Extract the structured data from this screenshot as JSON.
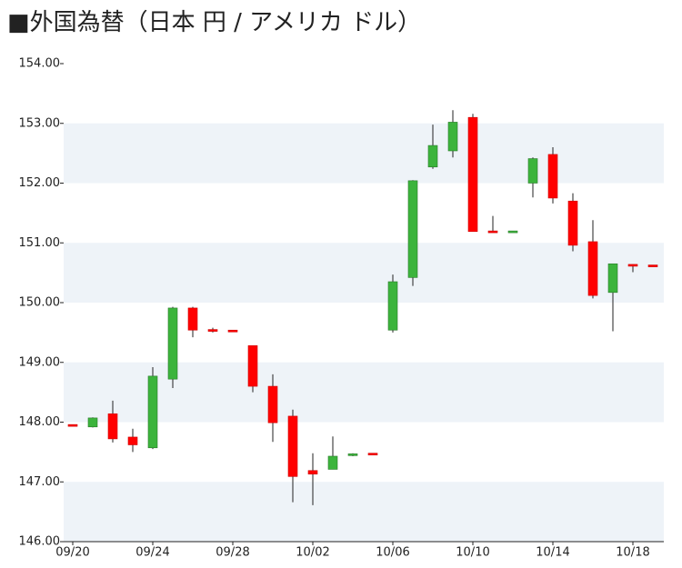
{
  "chart_data": {
    "type": "candlestick",
    "title": "■外国為替（日本 円 / アメリカ ドル）",
    "categories": [
      "09/20",
      null,
      null,
      null,
      "09/24",
      null,
      null,
      null,
      "09/28",
      null,
      null,
      null,
      "10/02",
      null,
      null,
      null,
      "10/06",
      null,
      null,
      null,
      "10/10",
      null,
      null,
      null,
      "10/14",
      null,
      null,
      null,
      "10/18",
      null
    ],
    "open": [
      147.96,
      147.92,
      148.14,
      147.75,
      147.57,
      148.72,
      149.91,
      149.55,
      149.54,
      149.28,
      148.6,
      148.1,
      147.19,
      147.21,
      147.44,
      147.48,
      149.54,
      150.42,
      152.27,
      152.54,
      153.1,
      151.2,
      151.18,
      152.0,
      152.48,
      151.7,
      151.02,
      150.17,
      150.64,
      150.63
    ],
    "high": [
      147.96,
      148.08,
      148.36,
      147.89,
      148.92,
      149.93,
      149.93,
      149.58,
      149.54,
      149.28,
      148.8,
      148.21,
      147.48,
      147.76,
      147.48,
      147.48,
      150.47,
      152.05,
      152.98,
      153.22,
      153.16,
      151.45,
      151.2,
      152.43,
      152.6,
      151.83,
      151.38,
      150.65,
      150.64,
      150.63
    ],
    "low": [
      147.94,
      147.91,
      147.66,
      147.5,
      147.55,
      148.57,
      149.42,
      149.5,
      149.52,
      148.5,
      147.67,
      146.66,
      146.61,
      147.21,
      147.43,
      147.46,
      149.5,
      150.28,
      152.24,
      152.43,
      151.19,
      151.18,
      151.18,
      151.76,
      151.66,
      150.86,
      150.07,
      149.52,
      150.51,
      150.61
    ],
    "close": [
      147.94,
      148.07,
      147.72,
      147.62,
      148.77,
      149.91,
      149.54,
      149.53,
      149.52,
      148.6,
      147.99,
      147.09,
      147.13,
      147.43,
      147.47,
      147.46,
      150.35,
      152.04,
      152.63,
      153.02,
      151.19,
      151.18,
      151.2,
      152.41,
      151.75,
      150.96,
      150.12,
      150.65,
      150.62,
      150.61
    ],
    "up_color": "#3cb43c",
    "down_color": "#ff0000",
    "band_color": "#eef3f8",
    "ylim": [
      146,
      154
    ],
    "yticks": [
      {
        "value": 146,
        "label": "146.00"
      },
      {
        "value": 147,
        "label": "147.00"
      },
      {
        "value": 148,
        "label": "148.00"
      },
      {
        "value": 149,
        "label": "149.00"
      },
      {
        "value": 150,
        "label": "150.00"
      },
      {
        "value": 151,
        "label": "151.00"
      },
      {
        "value": 152,
        "label": "152.00"
      },
      {
        "value": 153,
        "label": "153.00"
      },
      {
        "value": 154,
        "label": "154.00"
      }
    ]
  }
}
